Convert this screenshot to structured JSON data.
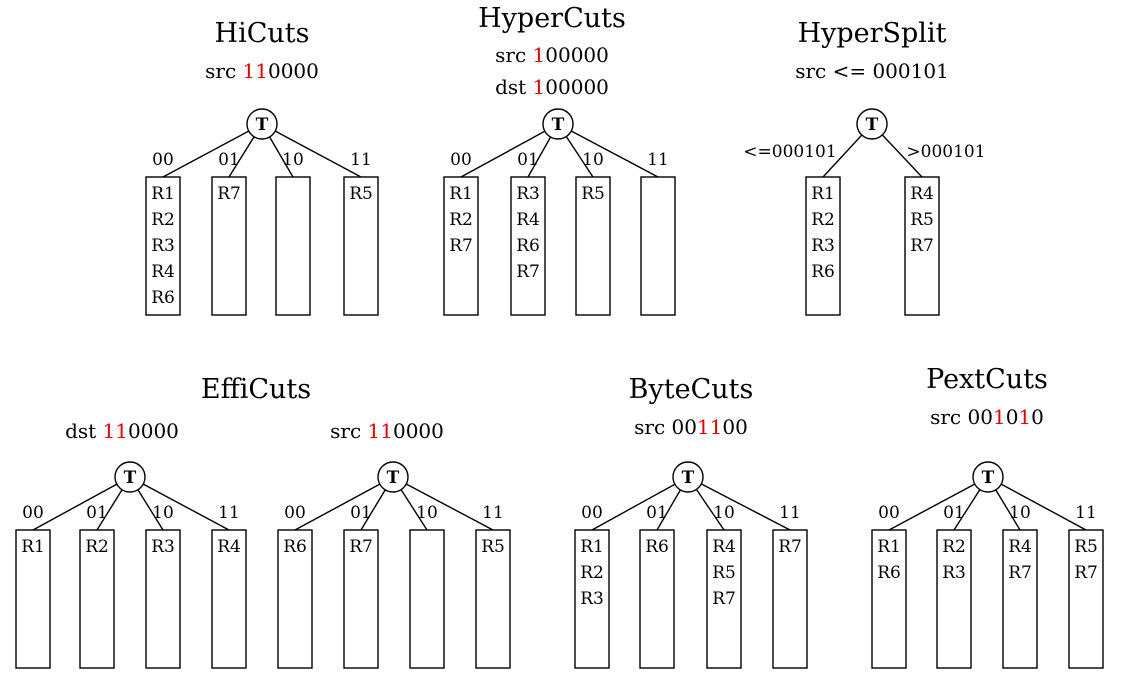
{
  "colors": {
    "highlight": "#e00000",
    "stroke": "#000000"
  },
  "diagrams": [
    {
      "id": "hicuts",
      "title": "HiCuts",
      "sublines": [
        [
          {
            "t": "src ",
            "hl": false
          },
          {
            "t": "11",
            "hl": true
          },
          {
            "t": "0000",
            "hl": false
          }
        ]
      ],
      "root": "T",
      "branches": [
        {
          "label": "00",
          "rules": [
            "R1",
            "R2",
            "R3",
            "R4",
            "R6"
          ]
        },
        {
          "label": "01",
          "rules": [
            "R7"
          ]
        },
        {
          "label": "10",
          "rules": []
        },
        {
          "label": "11",
          "rules": [
            "R5"
          ]
        }
      ]
    },
    {
      "id": "hypercuts",
      "title": "HyperCuts",
      "sublines": [
        [
          {
            "t": "src ",
            "hl": false
          },
          {
            "t": "1",
            "hl": true
          },
          {
            "t": "00000",
            "hl": false
          }
        ],
        [
          {
            "t": "dst ",
            "hl": false
          },
          {
            "t": "1",
            "hl": true
          },
          {
            "t": "00000",
            "hl": false
          }
        ]
      ],
      "root": "T",
      "branches": [
        {
          "label": "00",
          "rules": [
            "R1",
            "R2",
            "R7"
          ]
        },
        {
          "label": "01",
          "rules": [
            "R3",
            "R4",
            "R6",
            "R7"
          ]
        },
        {
          "label": "10",
          "rules": [
            "R5"
          ]
        },
        {
          "label": "11",
          "rules": []
        }
      ]
    },
    {
      "id": "hypersplit",
      "title": "HyperSplit",
      "sublines": [
        [
          {
            "t": "src <= 000101",
            "hl": false
          }
        ]
      ],
      "root": "T",
      "branches": [
        {
          "label": "<=000101",
          "rules": [
            "R1",
            "R2",
            "R3",
            "R6"
          ]
        },
        {
          "label": ">000101",
          "rules": [
            "R4",
            "R5",
            "R7"
          ]
        }
      ]
    },
    {
      "id": "efficuts",
      "title": "EffiCuts",
      "sublines": [],
      "trees": [
        {
          "sublines": [
            [
              {
                "t": "dst ",
                "hl": false
              },
              {
                "t": "11",
                "hl": true
              },
              {
                "t": "0000",
                "hl": false
              }
            ]
          ],
          "root": "T",
          "branches": [
            {
              "label": "00",
              "rules": [
                "R1"
              ]
            },
            {
              "label": "01",
              "rules": [
                "R2"
              ]
            },
            {
              "label": "10",
              "rules": [
                "R3"
              ]
            },
            {
              "label": "11",
              "rules": [
                "R4"
              ]
            }
          ]
        },
        {
          "sublines": [
            [
              {
                "t": "src ",
                "hl": false
              },
              {
                "t": "11",
                "hl": true
              },
              {
                "t": "0000",
                "hl": false
              }
            ]
          ],
          "root": "T",
          "branches": [
            {
              "label": "00",
              "rules": [
                "R6"
              ]
            },
            {
              "label": "01",
              "rules": [
                "R7"
              ]
            },
            {
              "label": "10",
              "rules": []
            },
            {
              "label": "11",
              "rules": [
                "R5"
              ]
            }
          ]
        }
      ]
    },
    {
      "id": "bytecuts",
      "title": "ByteCuts",
      "sublines": [
        [
          {
            "t": "src 00",
            "hl": false
          },
          {
            "t": "11",
            "hl": true
          },
          {
            "t": "00",
            "hl": false
          }
        ]
      ],
      "root": "T",
      "branches": [
        {
          "label": "00",
          "rules": [
            "R1",
            "R2",
            "R3"
          ]
        },
        {
          "label": "01",
          "rules": [
            "R6"
          ]
        },
        {
          "label": "10",
          "rules": [
            "R4",
            "R5",
            "R7"
          ]
        },
        {
          "label": "11",
          "rules": [
            "R7"
          ]
        }
      ]
    },
    {
      "id": "pextcuts",
      "title": "PextCuts",
      "sublines": [
        [
          {
            "t": "src 00",
            "hl": false
          },
          {
            "t": "1",
            "hl": true
          },
          {
            "t": "0",
            "hl": false
          },
          {
            "t": "1",
            "hl": true
          },
          {
            "t": "0",
            "hl": false
          }
        ]
      ],
      "root": "T",
      "branches": [
        {
          "label": "00",
          "rules": [
            "R1",
            "R6"
          ]
        },
        {
          "label": "01",
          "rules": [
            "R2",
            "R3"
          ]
        },
        {
          "label": "10",
          "rules": [
            "R4",
            "R7"
          ]
        },
        {
          "label": "11",
          "rules": [
            "R5",
            "R7"
          ]
        }
      ]
    }
  ]
}
